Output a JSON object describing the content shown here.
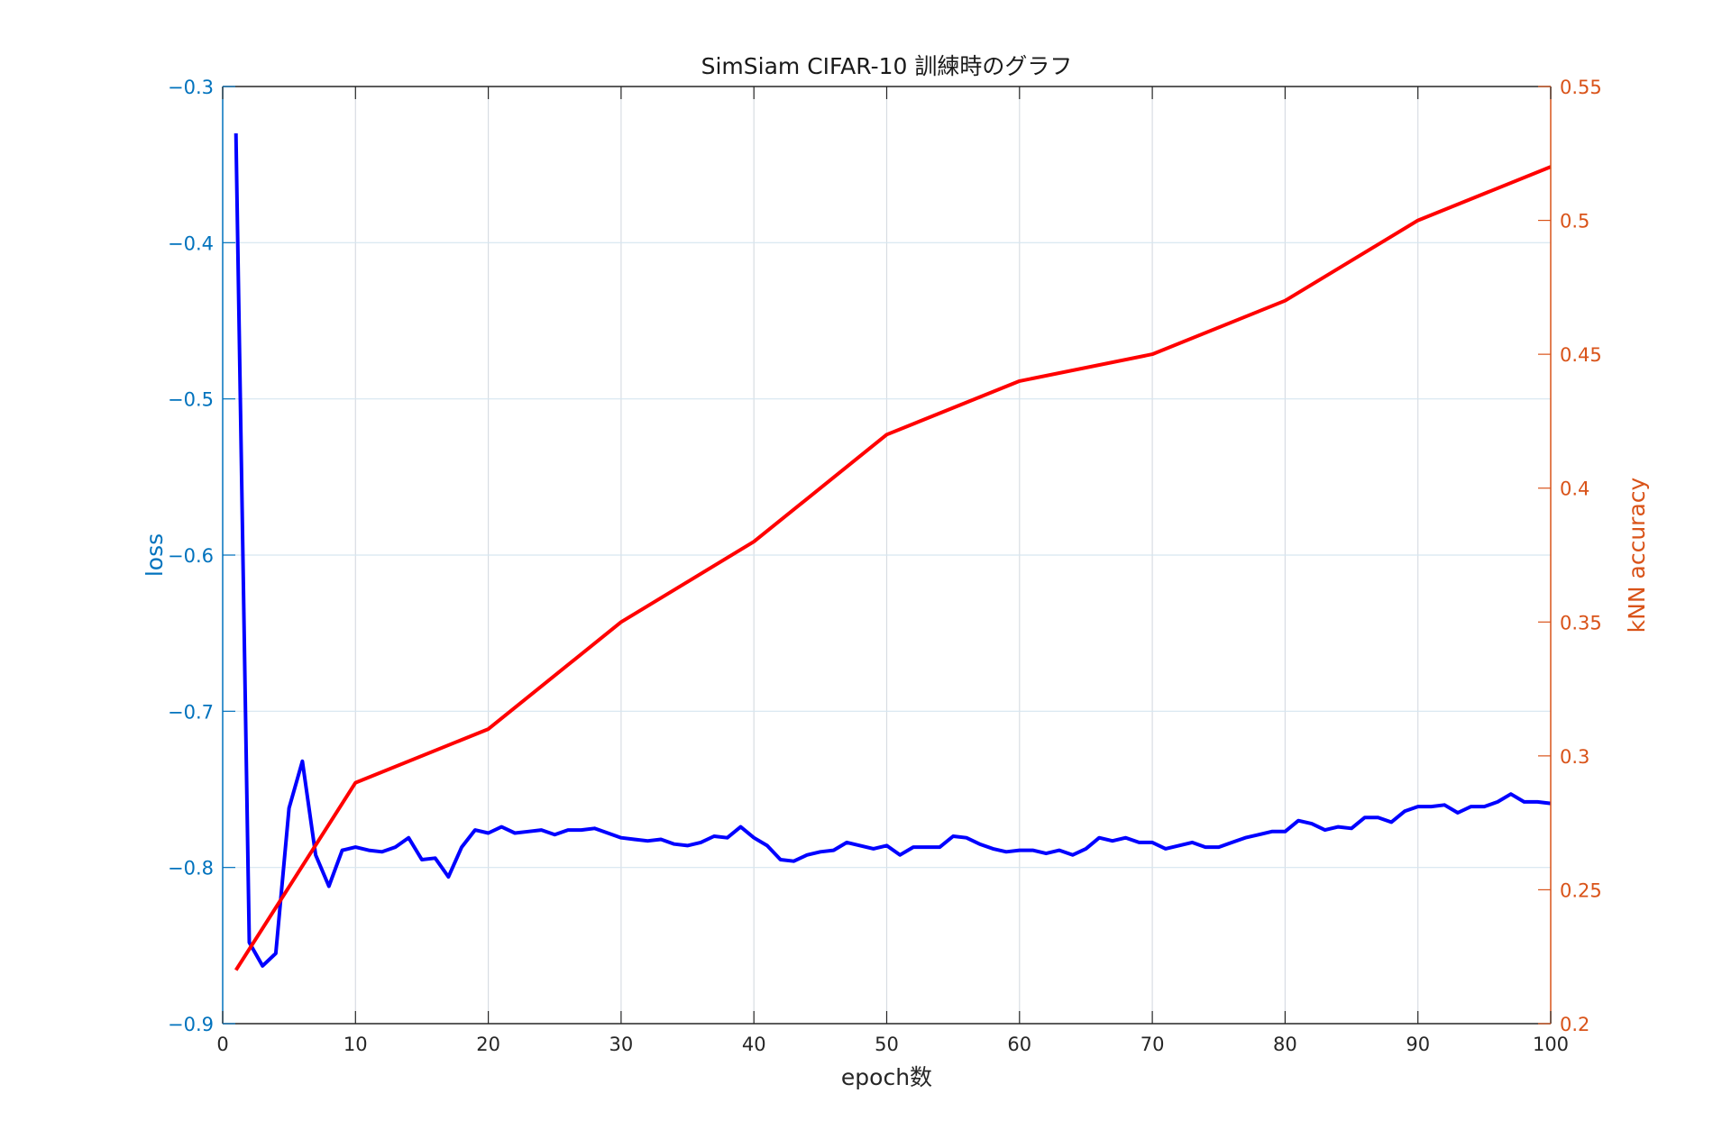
{
  "chart_data": {
    "type": "line",
    "title": "SimSiam CIFAR-10 訓練時のグラフ",
    "xlabel": "epoch数",
    "ylabel_left": "loss",
    "ylabel_right": "kNN accuracy",
    "xlim": [
      0,
      100
    ],
    "ylim_left": [
      -0.9,
      -0.3
    ],
    "ylim_right": [
      0.2,
      0.55
    ],
    "xticks": [
      0,
      10,
      20,
      30,
      40,
      50,
      60,
      70,
      80,
      90,
      100
    ],
    "xtick_labels": [
      "0",
      "10",
      "20",
      "30",
      "40",
      "50",
      "60",
      "70",
      "80",
      "90",
      "100"
    ],
    "yticks_left": [
      -0.9,
      -0.8,
      -0.7,
      -0.6,
      -0.5,
      -0.4,
      -0.3
    ],
    "ytick_labels_left": [
      "−0.9",
      "−0.8",
      "−0.7",
      "−0.6",
      "−0.5",
      "−0.4",
      "−0.3"
    ],
    "yticks_right": [
      0.2,
      0.25,
      0.3,
      0.35,
      0.4,
      0.45,
      0.5,
      0.55
    ],
    "ytick_labels_right": [
      "0.2",
      "0.25",
      "0.3",
      "0.35",
      "0.4",
      "0.45",
      "0.5",
      "0.55"
    ],
    "grid": true,
    "legend": null,
    "series": [
      {
        "name": "loss",
        "axis": "left",
        "color": "#0000ff",
        "x": [
          1,
          2,
          3,
          4,
          5,
          6,
          7,
          8,
          9,
          10,
          11,
          12,
          13,
          14,
          15,
          16,
          17,
          18,
          19,
          20,
          21,
          22,
          23,
          24,
          25,
          26,
          27,
          28,
          29,
          30,
          31,
          32,
          33,
          34,
          35,
          36,
          37,
          38,
          39,
          40,
          41,
          42,
          43,
          44,
          45,
          46,
          47,
          48,
          49,
          50,
          51,
          52,
          53,
          54,
          55,
          56,
          57,
          58,
          59,
          60,
          61,
          62,
          63,
          64,
          65,
          66,
          67,
          68,
          69,
          70,
          71,
          72,
          73,
          74,
          75,
          76,
          77,
          78,
          79,
          80,
          81,
          82,
          83,
          84,
          85,
          86,
          87,
          88,
          89,
          90,
          91,
          92,
          93,
          94,
          95,
          96,
          97,
          98,
          99,
          100
        ],
        "values": [
          -0.33,
          -0.848,
          -0.863,
          -0.855,
          -0.762,
          -0.732,
          -0.792,
          -0.812,
          -0.789,
          -0.787,
          -0.789,
          -0.79,
          -0.787,
          -0.781,
          -0.795,
          -0.794,
          -0.806,
          -0.787,
          -0.776,
          -0.778,
          -0.774,
          -0.778,
          -0.777,
          -0.776,
          -0.779,
          -0.776,
          -0.776,
          -0.775,
          -0.778,
          -0.781,
          -0.782,
          -0.783,
          -0.782,
          -0.785,
          -0.786,
          -0.784,
          -0.78,
          -0.781,
          -0.774,
          -0.781,
          -0.786,
          -0.795,
          -0.796,
          -0.792,
          -0.79,
          -0.789,
          -0.784,
          -0.786,
          -0.788,
          -0.786,
          -0.792,
          -0.787,
          -0.787,
          -0.787,
          -0.78,
          -0.781,
          -0.785,
          -0.788,
          -0.79,
          -0.789,
          -0.789,
          -0.791,
          -0.789,
          -0.792,
          -0.788,
          -0.781,
          -0.783,
          -0.781,
          -0.784,
          -0.784,
          -0.788,
          -0.786,
          -0.784,
          -0.787,
          -0.787,
          -0.784,
          -0.781,
          -0.779,
          -0.777,
          -0.777,
          -0.77,
          -0.772,
          -0.776,
          -0.774,
          -0.775,
          -0.768,
          -0.768,
          -0.771,
          -0.764,
          -0.761,
          -0.761,
          -0.76,
          -0.765,
          -0.761,
          -0.761,
          -0.758,
          -0.753,
          -0.758,
          -0.758,
          -0.759
        ]
      },
      {
        "name": "kNN accuracy",
        "axis": "right",
        "color": "#ff0000",
        "x": [
          1,
          10,
          20,
          30,
          40,
          50,
          60,
          70,
          80,
          90,
          100
        ],
        "values": [
          0.22,
          0.29,
          0.31,
          0.35,
          0.38,
          0.42,
          0.44,
          0.45,
          0.47,
          0.5,
          0.52
        ]
      }
    ],
    "colors": {
      "left_axis": "#0072bd",
      "right_axis": "#d95319",
      "x_axis": "#262626",
      "grid_horizontal": "#d6e6f0",
      "grid_vertical": "#d8dde3"
    }
  }
}
